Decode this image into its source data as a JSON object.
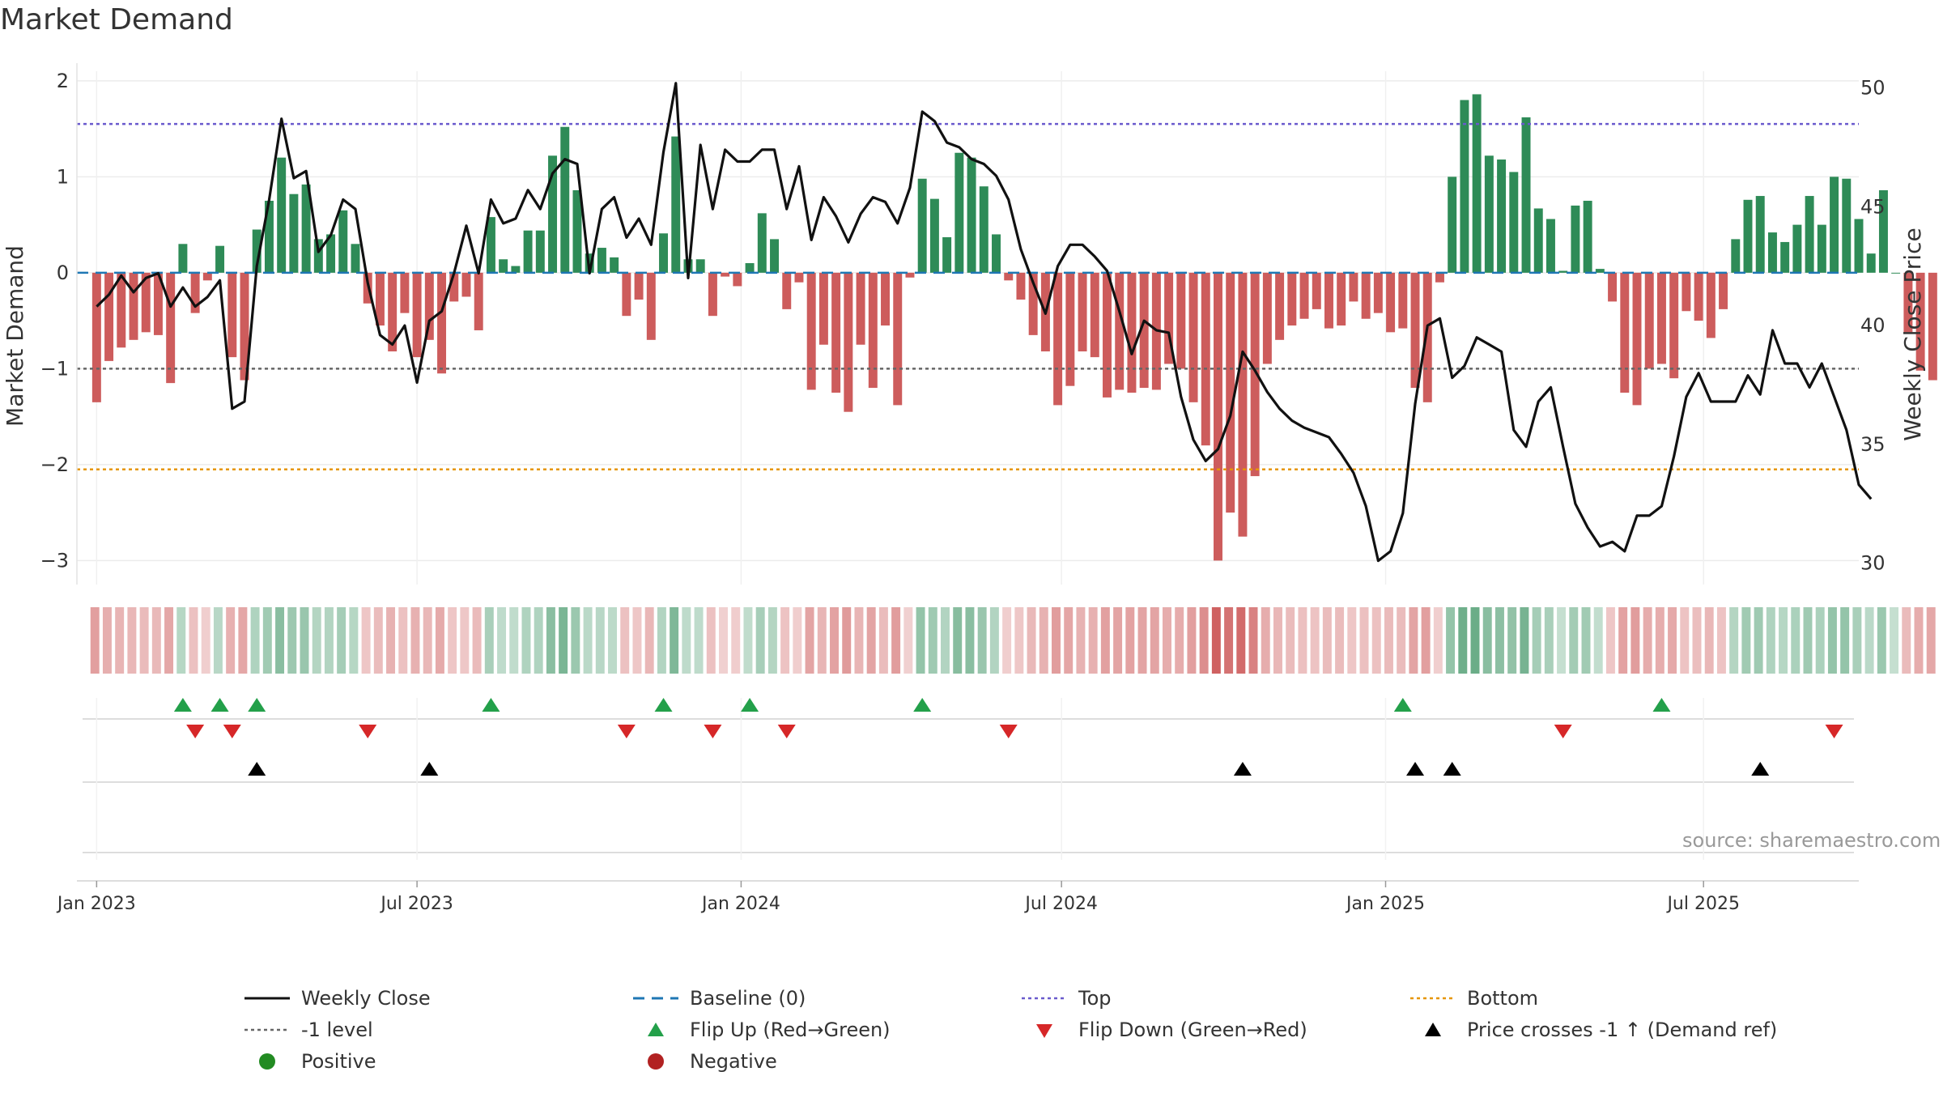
{
  "title": "Market Demand",
  "source": "source: sharemaestro.com",
  "colors": {
    "pos_bar": "#2e8b57",
    "neg_bar": "#cd5c5c",
    "close": "#111111",
    "baseline": "#1f77b4",
    "top": "#6a5acd",
    "bottom": "#e69500",
    "minus1": "#666666",
    "flip_up": "#23a04a",
    "flip_down": "#d62728",
    "cross": "#000000",
    "positive_dot": "#228b22",
    "negative_dot": "#b22222"
  },
  "legend": [
    {
      "key": "close",
      "label": "Weekly Close"
    },
    {
      "key": "baseline",
      "label": "Baseline (0)"
    },
    {
      "key": "top",
      "label": "Top"
    },
    {
      "key": "bottom",
      "label": "Bottom"
    },
    {
      "key": "minus1",
      "label": "-1 level"
    },
    {
      "key": "flip_up",
      "label": "Flip Up (Red→Green)"
    },
    {
      "key": "flip_down",
      "label": "Flip Down (Green→Red)"
    },
    {
      "key": "cross",
      "label": "Price crosses -1 ↑ (Demand ref)"
    },
    {
      "key": "positive",
      "label": "Positive"
    },
    {
      "key": "negative",
      "label": "Negative"
    }
  ],
  "chart_data": {
    "type": "bar",
    "title": "Market Demand",
    "ylabel": "Market Demand",
    "y2label": "Weekly Close Price",
    "ylim": [
      -3.25,
      2.1
    ],
    "y2lim": [
      29.1,
      50.7
    ],
    "yticks": [
      2,
      1,
      0,
      -1,
      -2,
      -3
    ],
    "ytick_labels": [
      "2",
      "1",
      "0",
      "−1",
      "−2",
      "−3"
    ],
    "y2ticks": [
      50,
      45,
      40,
      35,
      30
    ],
    "y2tick_labels": [
      "50",
      "45",
      "40",
      "35",
      "30"
    ],
    "xlim_weeks": [
      -1.6,
      143
    ],
    "xticks_weeks": [
      0,
      26,
      52.3,
      78.3,
      104.6,
      130.4
    ],
    "xtick_labels": [
      "Jan 2023",
      "Jul 2023",
      "Jan 2024",
      "Jul 2024",
      "Jan 2025",
      "Jul 2025"
    ],
    "reference_lines": {
      "top": 1.55,
      "minus1": -1.0,
      "bottom": -2.05,
      "baseline": 0
    },
    "demand": [
      -1.35,
      -0.92,
      -0.78,
      -0.7,
      -0.62,
      -0.65,
      -1.15,
      0.3,
      -0.42,
      -0.08,
      0.28,
      -0.88,
      -1.12,
      0.45,
      0.75,
      1.2,
      0.82,
      0.92,
      0.35,
      0.4,
      0.65,
      0.3,
      -0.32,
      -0.55,
      -0.82,
      -0.42,
      -0.88,
      -0.7,
      -1.05,
      -0.3,
      -0.25,
      -0.6,
      0.58,
      0.14,
      0.07,
      0.44,
      0.44,
      1.22,
      1.52,
      0.86,
      0.2,
      0.26,
      0.16,
      -0.45,
      -0.28,
      -0.7,
      0.41,
      1.42,
      0.14,
      0.14,
      -0.45,
      -0.04,
      -0.14,
      0.1,
      0.62,
      0.35,
      -0.38,
      -0.1,
      -1.22,
      -0.75,
      -1.25,
      -1.45,
      -0.75,
      -1.2,
      -0.55,
      -1.38,
      -0.05,
      0.98,
      0.77,
      0.37,
      1.25,
      1.2,
      0.9,
      0.4,
      -0.08,
      -0.28,
      -0.65,
      -0.82,
      -1.38,
      -1.18,
      -0.82,
      -0.88,
      -1.3,
      -1.22,
      -1.25,
      -1.2,
      -1.22,
      -0.95,
      -1.0,
      -1.35,
      -1.8,
      -3.0,
      -2.5,
      -2.75,
      -2.12,
      -0.95,
      -0.7,
      -0.55,
      -0.48,
      -0.38,
      -0.58,
      -0.55,
      -0.3,
      -0.48,
      -0.42,
      -0.62,
      -0.58,
      -1.2,
      -1.35,
      -0.1,
      1.0,
      1.8,
      1.86,
      1.22,
      1.18,
      1.05,
      1.62,
      0.67,
      0.56,
      0.02,
      0.7,
      0.75,
      0.04,
      -0.3,
      -1.25,
      -1.38,
      -1.0,
      -0.95,
      -1.1,
      -0.4,
      -0.5,
      -0.68,
      -0.38,
      0.35,
      0.76,
      0.8,
      0.42,
      0.32,
      0.5,
      0.8,
      0.5,
      1.0,
      0.98,
      0.56,
      0.2,
      0.86,
      0.0,
      -0.62,
      -1.02,
      -1.12
    ],
    "weekly_close": [
      40.8,
      41.3,
      42.1,
      41.4,
      42.0,
      42.2,
      40.8,
      41.6,
      40.8,
      41.2,
      41.9,
      36.5,
      36.8,
      42.5,
      45.3,
      48.7,
      46.2,
      46.5,
      43.1,
      43.8,
      45.3,
      44.9,
      41.8,
      39.6,
      39.2,
      40.0,
      37.6,
      40.2,
      40.6,
      42.2,
      44.2,
      42.2,
      45.3,
      44.3,
      44.5,
      45.7,
      44.9,
      46.4,
      47.0,
      46.8,
      42.2,
      44.9,
      45.4,
      43.7,
      44.5,
      43.4,
      47.3,
      50.2,
      42.0,
      47.6,
      44.9,
      47.4,
      46.9,
      46.9,
      47.4,
      47.4,
      44.9,
      46.7,
      43.6,
      45.4,
      44.6,
      43.5,
      44.7,
      45.4,
      45.2,
      44.3,
      45.8,
      49.0,
      48.6,
      47.7,
      47.5,
      47.0,
      46.8,
      46.3,
      45.3,
      43.2,
      41.8,
      40.5,
      42.5,
      43.4,
      43.4,
      42.9,
      42.3,
      40.6,
      38.8,
      40.2,
      39.8,
      39.7,
      37.0,
      35.2,
      34.3,
      34.8,
      36.2,
      38.9,
      38.1,
      37.2,
      36.5,
      36.0,
      35.7,
      35.5,
      35.3,
      34.6,
      33.8,
      32.4,
      30.1,
      30.5,
      32.1,
      36.7,
      40.0,
      40.3,
      37.8,
      38.3,
      39.5,
      39.2,
      38.9,
      35.6,
      34.9,
      36.8,
      37.4,
      34.9,
      32.5,
      31.5,
      30.7,
      30.9,
      30.5,
      32.0,
      32.0,
      32.4,
      34.5,
      37.0,
      38.0,
      36.8,
      36.8,
      36.8,
      37.9,
      37.1,
      39.8,
      38.4,
      38.4,
      37.4,
      38.4,
      37.0,
      35.6,
      33.3,
      32.7
    ],
    "flip_up_weeks": [
      7,
      10,
      13,
      32,
      46,
      53,
      67,
      106,
      127
    ],
    "flip_down_weeks": [
      8,
      11,
      22,
      43,
      50,
      56,
      74,
      119,
      141
    ],
    "cross_weeks": [
      13,
      27,
      93,
      107,
      110,
      135
    ]
  }
}
